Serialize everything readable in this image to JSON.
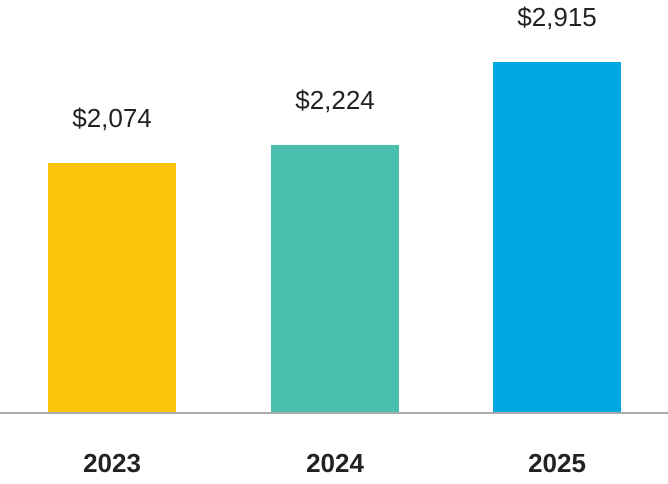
{
  "chart_data": {
    "type": "bar",
    "categories": [
      "2023",
      "2024",
      "2025"
    ],
    "values": [
      2074,
      2224,
      2915
    ],
    "value_labels": [
      "$2,074",
      "$2,224",
      "$2,915"
    ],
    "colors": [
      "#fcc30b",
      "#4bbfad",
      "#00a8e1"
    ]
  }
}
